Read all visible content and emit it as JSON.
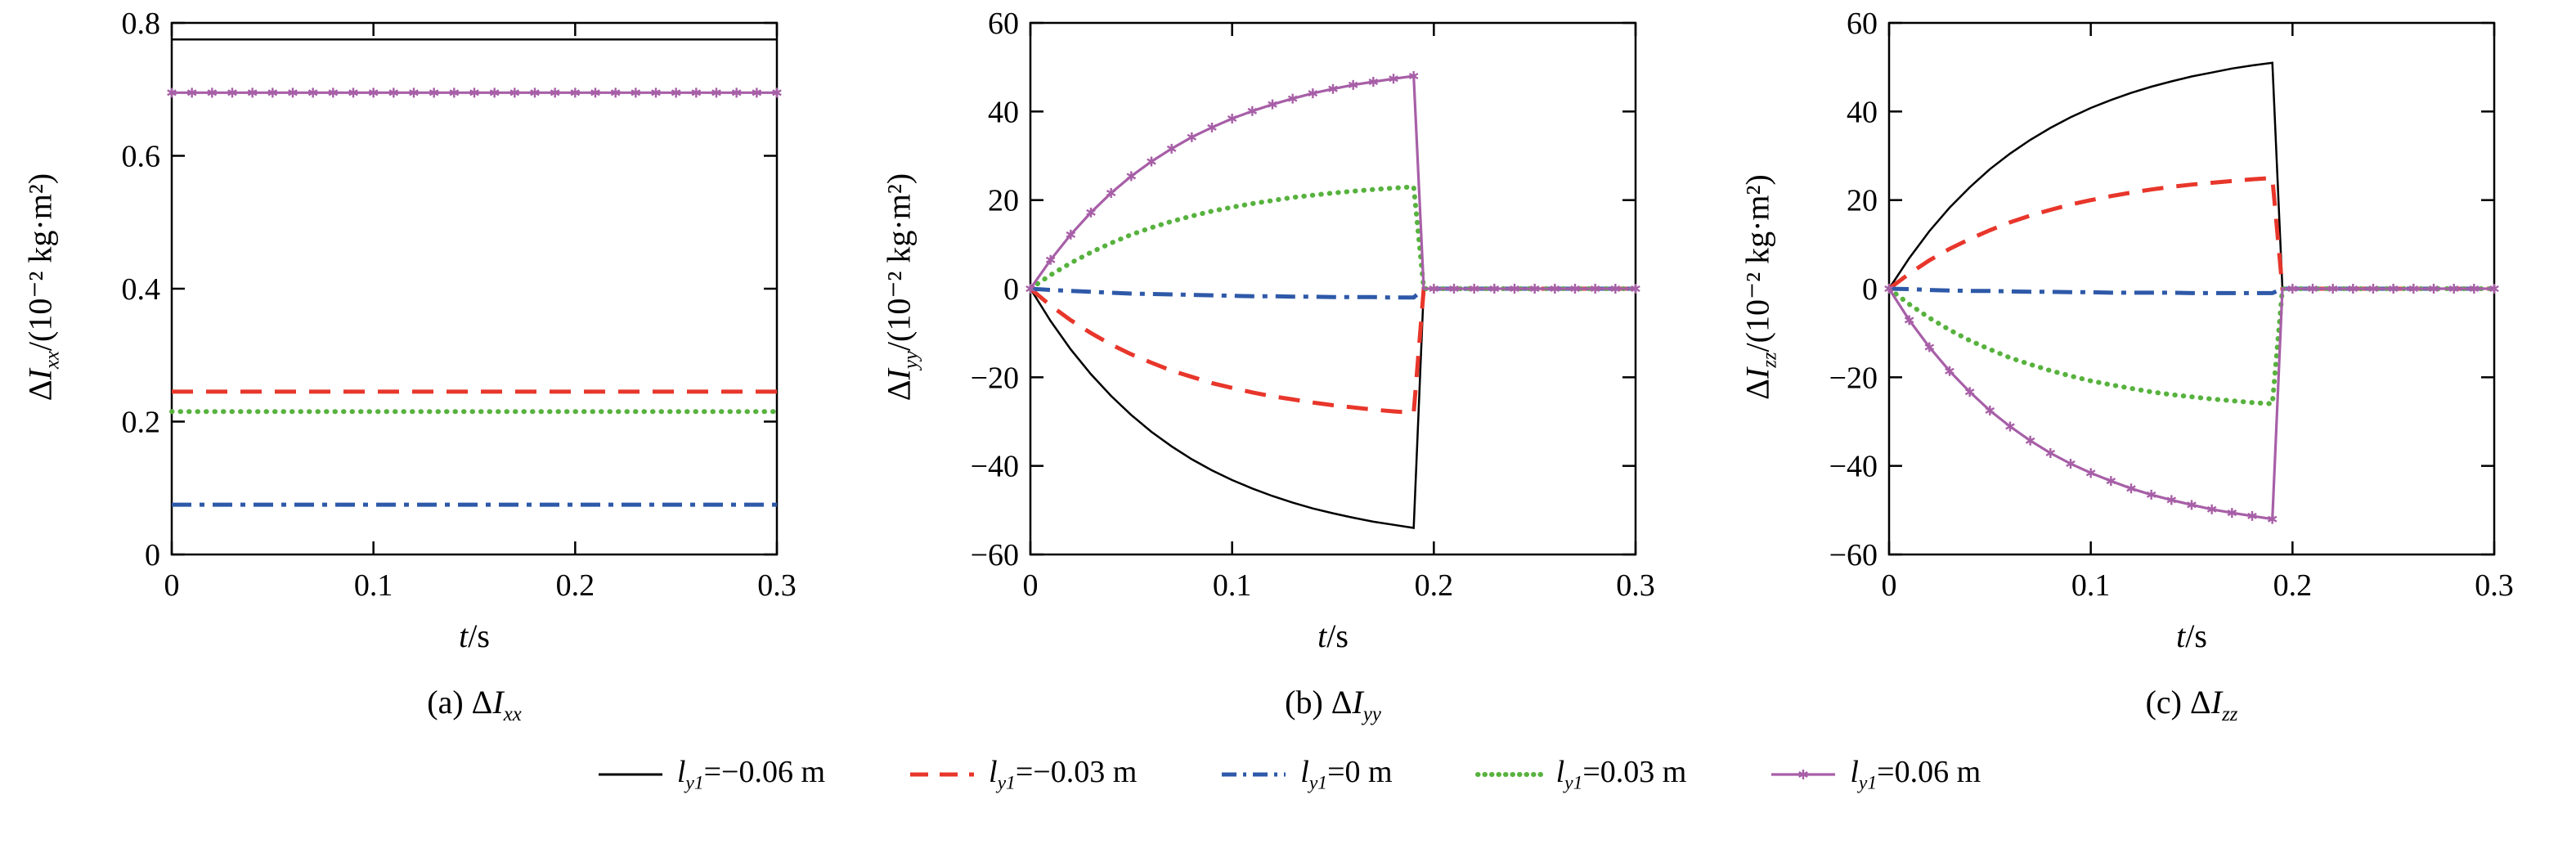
{
  "colors": {
    "black": "#000000",
    "red": "#e8362b",
    "blue": "#2e59a8",
    "green": "#57b23e",
    "purple": "#a75fa7"
  },
  "legend": {
    "items": [
      {
        "var": "l",
        "sub": "y1",
        "rest": "=−0.06 m",
        "style": "solid",
        "color": "#000000",
        "width": 3,
        "dash": null,
        "linecap": "butt"
      },
      {
        "var": "l",
        "sub": "y1",
        "rest": "=−0.03 m",
        "style": "dashed",
        "color": "#e8362b",
        "width": 5,
        "dash": "22 14",
        "linecap": "butt"
      },
      {
        "var": "l",
        "sub": "y1",
        "rest": "=0 m",
        "style": "dashdot",
        "color": "#2e59a8",
        "width": 5,
        "dash": "18 8 4 8",
        "linecap": "butt"
      },
      {
        "var": "l",
        "sub": "y1",
        "rest": "=0.03 m",
        "style": "dotted",
        "color": "#57b23e",
        "width": 6,
        "dash": "0.5 8",
        "linecap": "round"
      },
      {
        "var": "l",
        "sub": "y1",
        "rest": "=0.06 m",
        "style": "marker",
        "color": "#a75fa7",
        "width": 3.2,
        "dash": null,
        "linecap": "butt"
      }
    ]
  },
  "chart_data": [
    {
      "type": "line",
      "title": "(a) ΔIxx",
      "caption_parts": {
        "pre": "(a) Δ",
        "var": "I",
        "sub": "xx"
      },
      "xlabel": "t/s",
      "xlabel_parts": {
        "var": "t",
        "unit": "/s"
      },
      "ylabel": "ΔIxx/(10⁻² kg·m²)",
      "ylabel_parts": {
        "pre": "Δ",
        "var": "I",
        "sub": "xx",
        "unit": "/(10⁻² kg·m²)"
      },
      "xlim": [
        0,
        0.3
      ],
      "ylim": [
        0,
        0.8
      ],
      "xticks": [
        0,
        0.1,
        0.2,
        0.3
      ],
      "xtick_labels": [
        "0",
        "0.1",
        "0.2",
        "0.3"
      ],
      "yticks": [
        0,
        0.2,
        0.4,
        0.6,
        0.8
      ],
      "ytick_labels": [
        "0",
        "0.2",
        "0.4",
        "0.6",
        "0.8"
      ],
      "grid": false,
      "series": [
        {
          "name": "ly1=−0.06 m",
          "color": "#000000",
          "width": 2.5,
          "dash": null,
          "x": [
            0,
            0.3
          ],
          "y": [
            0.775,
            0.775
          ]
        },
        {
          "name": "ly1=−0.03 m",
          "color": "#e8362b",
          "width": 5,
          "dash": "26 16",
          "x": [
            0,
            0.3
          ],
          "y": [
            0.245,
            0.245
          ]
        },
        {
          "name": "ly1=0 m",
          "color": "#2e59a8",
          "width": 5,
          "dash": "24 10 6 10",
          "x": [
            0,
            0.3
          ],
          "y": [
            0.075,
            0.075
          ]
        },
        {
          "name": "ly1=0.03 m",
          "color": "#57b23e",
          "width": 6,
          "dash": "0.5 10",
          "linecap": "round",
          "x": [
            0,
            0.3
          ],
          "y": [
            0.215,
            0.215
          ]
        },
        {
          "name": "ly1=0.06 m",
          "color": "#a75fa7",
          "width": 3.2,
          "dash": null,
          "marker": "asterisk",
          "marker_step": 0.01,
          "x": [
            0,
            0.3
          ],
          "y": [
            0.695,
            0.695
          ]
        }
      ]
    },
    {
      "type": "line",
      "title": "(b) ΔIyy",
      "caption_parts": {
        "pre": "(b) Δ",
        "var": "I",
        "sub": "yy"
      },
      "xlabel": "t/s",
      "xlabel_parts": {
        "var": "t",
        "unit": "/s"
      },
      "ylabel": "ΔIyy/(10⁻² kg·m²)",
      "ylabel_parts": {
        "pre": "Δ",
        "var": "I",
        "sub": "yy",
        "unit": "/(10⁻² kg·m²)"
      },
      "xlim": [
        0,
        0.3
      ],
      "ylim": [
        -60,
        60
      ],
      "xticks": [
        0,
        0.1,
        0.2,
        0.3
      ],
      "xtick_labels": [
        "0",
        "0.1",
        "0.2",
        "0.3"
      ],
      "yticks": [
        -60,
        -40,
        -20,
        0,
        20,
        40,
        60
      ],
      "ytick_labels": [
        "−60",
        "−40",
        "−20",
        "0",
        "20",
        "40",
        "60"
      ],
      "grid": false,
      "x_shared": [
        0,
        0.01,
        0.02,
        0.03,
        0.04,
        0.05,
        0.06,
        0.07,
        0.08,
        0.09,
        0.1,
        0.11,
        0.12,
        0.13,
        0.14,
        0.15,
        0.16,
        0.17,
        0.18,
        0.19,
        0.195,
        0.2,
        0.21,
        0.22,
        0.23,
        0.24,
        0.25,
        0.26,
        0.27,
        0.28,
        0.29,
        0.3
      ],
      "series": [
        {
          "name": "ly1=−0.06 m",
          "color": "#000000",
          "width": 2.5,
          "dash": null,
          "y": [
            0,
            -7.3,
            -13.7,
            -19.3,
            -24.2,
            -28.5,
            -32.3,
            -35.6,
            -38.5,
            -41,
            -43.2,
            -45.1,
            -46.8,
            -48.3,
            -49.6,
            -50.7,
            -51.7,
            -52.6,
            -53.3,
            -54,
            0,
            0,
            0,
            0,
            0,
            0,
            0,
            0,
            0,
            0,
            0,
            0
          ]
        },
        {
          "name": "ly1=−0.03 m",
          "color": "#e8362b",
          "width": 5,
          "dash": "26 16",
          "y": [
            0,
            -3.8,
            -7.1,
            -10,
            -12.6,
            -14.8,
            -16.7,
            -18.5,
            -19.9,
            -21.3,
            -22.4,
            -23.4,
            -24.3,
            -25,
            -25.7,
            -26.3,
            -26.8,
            -27.3,
            -27.7,
            -28,
            0,
            0,
            0,
            0,
            0,
            0,
            0,
            0,
            0,
            0,
            0,
            0
          ]
        },
        {
          "name": "ly1=0 m",
          "color": "#2e59a8",
          "width": 5,
          "dash": "24 10 6 10",
          "y": [
            0,
            -0.3,
            -0.5,
            -0.7,
            -0.9,
            -1.1,
            -1.2,
            -1.3,
            -1.4,
            -1.5,
            -1.6,
            -1.7,
            -1.7,
            -1.8,
            -1.8,
            -1.9,
            -1.9,
            -1.9,
            -2,
            -2,
            0,
            0,
            0,
            0,
            0,
            0,
            0,
            0,
            0,
            0,
            0,
            0
          ]
        },
        {
          "name": "ly1=0.03 m",
          "color": "#57b23e",
          "width": 6,
          "dash": "0.5 10",
          "linecap": "round",
          "y": [
            0,
            3.1,
            5.8,
            8.2,
            10.3,
            12.2,
            13.8,
            15.2,
            16.4,
            17.5,
            18.4,
            19.2,
            19.9,
            20.6,
            21.1,
            21.6,
            22,
            22.4,
            22.7,
            23,
            0,
            0,
            0,
            0,
            0,
            0,
            0,
            0,
            0,
            0,
            0,
            0
          ]
        },
        {
          "name": "ly1=0.06 m",
          "color": "#a75fa7",
          "width": 3.2,
          "dash": null,
          "marker": "asterisk",
          "skip_marker_x": [
            0.195
          ],
          "y": [
            0,
            6.5,
            12.2,
            17.2,
            21.6,
            25.4,
            28.7,
            31.6,
            34.2,
            36.4,
            38.4,
            40.1,
            41.6,
            42.9,
            44.1,
            45.1,
            46,
            46.7,
            47.4,
            48,
            0,
            0,
            0,
            0,
            0,
            0,
            0,
            0,
            0,
            0,
            0,
            0
          ]
        }
      ]
    },
    {
      "type": "line",
      "title": "(c) ΔIzz",
      "caption_parts": {
        "pre": "(c) Δ",
        "var": "I",
        "sub": "zz"
      },
      "xlabel": "t/s",
      "xlabel_parts": {
        "var": "t",
        "unit": "/s"
      },
      "ylabel": "ΔIzz/(10⁻² kg·m²)",
      "ylabel_parts": {
        "pre": "Δ",
        "var": "I",
        "sub": "zz",
        "unit": "/(10⁻² kg·m²)"
      },
      "xlim": [
        0,
        0.3
      ],
      "ylim": [
        -60,
        60
      ],
      "xticks": [
        0,
        0.1,
        0.2,
        0.3
      ],
      "xtick_labels": [
        "0",
        "0.1",
        "0.2",
        "0.3"
      ],
      "yticks": [
        -60,
        -40,
        -20,
        0,
        20,
        40,
        60
      ],
      "ytick_labels": [
        "−60",
        "−40",
        "−20",
        "0",
        "20",
        "40",
        "60"
      ],
      "grid": false,
      "x_shared": [
        0,
        0.01,
        0.02,
        0.03,
        0.04,
        0.05,
        0.06,
        0.07,
        0.08,
        0.09,
        0.1,
        0.11,
        0.12,
        0.13,
        0.14,
        0.15,
        0.16,
        0.17,
        0.18,
        0.19,
        0.195,
        0.2,
        0.21,
        0.22,
        0.23,
        0.24,
        0.25,
        0.26,
        0.27,
        0.28,
        0.29,
        0.3
      ],
      "series": [
        {
          "name": "ly1=−0.06 m",
          "color": "#000000",
          "width": 2.5,
          "dash": null,
          "y": [
            0,
            6.9,
            13,
            18.3,
            22.9,
            27,
            30.5,
            33.6,
            36.3,
            38.7,
            40.8,
            42.6,
            44.2,
            45.6,
            46.8,
            47.9,
            48.8,
            49.7,
            50.4,
            51,
            0,
            0,
            0,
            0,
            0,
            0,
            0,
            0,
            0,
            0,
            0,
            0
          ]
        },
        {
          "name": "ly1=−0.03 m",
          "color": "#e8362b",
          "width": 5,
          "dash": "26 16",
          "y": [
            0,
            3.4,
            6.4,
            9,
            11.2,
            13.2,
            15,
            16.5,
            17.8,
            19,
            20,
            20.9,
            21.7,
            22.4,
            23,
            23.5,
            23.9,
            24.3,
            24.7,
            25,
            0,
            0,
            0,
            0,
            0,
            0,
            0,
            0,
            0,
            0,
            0,
            0
          ]
        },
        {
          "name": "ly1=0 m",
          "color": "#2e59a8",
          "width": 5,
          "dash": "24 10 6 10",
          "y": [
            0,
            -0.1,
            -0.3,
            -0.4,
            -0.5,
            -0.5,
            -0.6,
            -0.7,
            -0.7,
            -0.8,
            -0.8,
            -0.9,
            -0.9,
            -0.9,
            -0.9,
            -1,
            -1,
            -1,
            -1,
            -1,
            0,
            0,
            0,
            0,
            0,
            0,
            0,
            0,
            0,
            0,
            0,
            0
          ]
        },
        {
          "name": "ly1=0.03 m",
          "color": "#57b23e",
          "width": 6,
          "dash": "0.5 10",
          "linecap": "round",
          "y": [
            0,
            -3.5,
            -6.6,
            -9.3,
            -11.7,
            -13.7,
            -15.6,
            -17.1,
            -18.5,
            -19.7,
            -20.8,
            -21.7,
            -22.5,
            -23.3,
            -23.9,
            -24.4,
            -24.9,
            -25.3,
            -25.7,
            -26,
            0,
            0,
            0,
            0,
            0,
            0,
            0,
            0,
            0,
            0,
            0,
            0
          ]
        },
        {
          "name": "ly1=0.06 m",
          "color": "#a75fa7",
          "width": 3.2,
          "dash": null,
          "marker": "asterisk",
          "skip_marker_x": [
            0.195
          ],
          "y": [
            0,
            -7.1,
            -13.2,
            -18.6,
            -23.3,
            -27.5,
            -31.1,
            -34.3,
            -37.1,
            -39.5,
            -41.6,
            -43.4,
            -45.1,
            -46.5,
            -47.7,
            -48.8,
            -49.8,
            -50.6,
            -51.3,
            -52,
            0,
            0,
            0,
            0,
            0,
            0,
            0,
            0,
            0,
            0,
            0,
            0
          ]
        }
      ]
    }
  ]
}
